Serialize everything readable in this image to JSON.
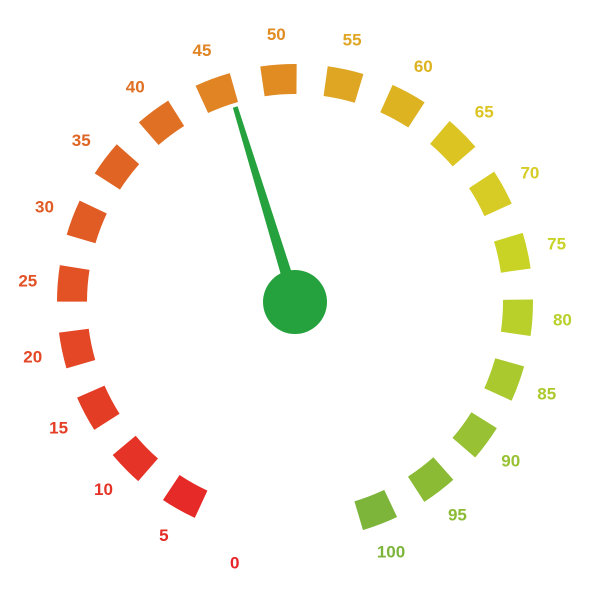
{
  "gauge": {
    "min": 0,
    "max": 100,
    "step": 5,
    "value": 46,
    "labels": [
      "0",
      "5",
      "10",
      "15",
      "20",
      "25",
      "30",
      "35",
      "40",
      "45",
      "50",
      "55",
      "60",
      "65",
      "70",
      "75",
      "80",
      "85",
      "90",
      "95",
      "100"
    ],
    "colors": [
      "#e8232a",
      "#e62a28",
      "#e53327",
      "#e43d26",
      "#e34726",
      "#e25225",
      "#e15b24",
      "#e06524",
      "#e07024",
      "#e08424",
      "#e08c22",
      "#dea623",
      "#ddb322",
      "#dcc422",
      "#d6cc25",
      "#c8d325",
      "#b9cf2a",
      "#a9c92e",
      "#98c134",
      "#8bbb34",
      "#7cb53a"
    ],
    "colors_meta": {
      "needle": "#25a23d",
      "hub": "#25a23d",
      "background": "#ffffff"
    }
  }
}
